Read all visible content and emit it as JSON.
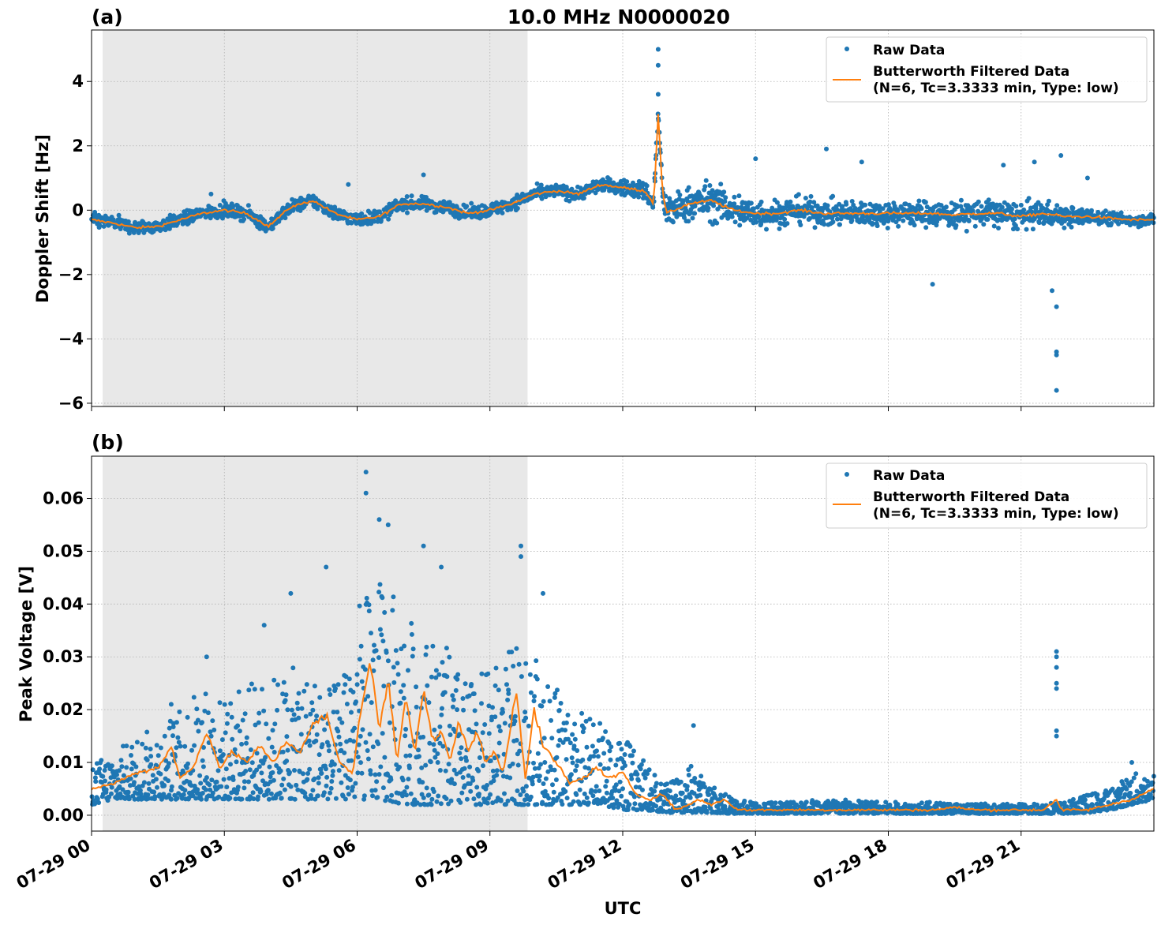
{
  "figure_title": "10.0 MHz N0000020",
  "x_axis": {
    "label": "UTC",
    "tick_labels": [
      "07-29 00",
      "07-29 03",
      "07-29 06",
      "07-29 09",
      "07-29 12",
      "07-29 15",
      "07-29 18",
      "07-29 21"
    ],
    "tick_hours": [
      0,
      3,
      6,
      9,
      12,
      15,
      18,
      21
    ],
    "range_hours": [
      0,
      24
    ]
  },
  "legend": {
    "raw_label": "Raw Data",
    "filtered_label_line1": "Butterworth Filtered Data",
    "filtered_label_line2": "(N=6, Tc=3.3333 min, Type: low)"
  },
  "colors": {
    "raw": "#1f77b4",
    "filtered": "#ff7f0e",
    "night_shade": "#e8e8e8"
  },
  "chart_data": [
    {
      "type": "scatter",
      "panel_label": "(a)",
      "ylabel": "Doppler Shift [Hz]",
      "ylim": [
        -6.1,
        5.6
      ],
      "yticks": [
        4,
        2,
        0,
        -2,
        -4,
        -6
      ],
      "ytick_labels": [
        "4",
        "2",
        "0",
        "−2",
        "−4",
        "−6"
      ],
      "shaded_region_hours": [
        0.25,
        9.85
      ],
      "grid": true,
      "legend_position": "top-right",
      "series": [
        {
          "name": "Raw Data",
          "kind": "scatter",
          "envelope_hours": [
            0,
            0.5,
            1,
            1.5,
            2,
            2.5,
            3,
            3.5,
            4,
            4.5,
            5,
            5.5,
            6,
            6.5,
            7,
            7.5,
            8,
            8.5,
            9,
            9.5,
            10,
            10.5,
            11,
            11.5,
            12,
            12.5,
            12.8,
            13,
            13.5,
            14,
            14.5,
            15,
            15.5,
            16,
            16.5,
            17,
            17.5,
            18,
            18.5,
            19,
            19.5,
            20,
            20.5,
            21,
            21.5,
            22,
            22.5,
            23,
            23.5,
            24
          ],
          "envelope_spread": [
            0.35,
            0.35,
            0.35,
            0.35,
            0.35,
            0.35,
            0.35,
            0.35,
            0.35,
            0.35,
            0.35,
            0.35,
            0.35,
            0.35,
            0.35,
            0.35,
            0.35,
            0.35,
            0.35,
            0.35,
            0.35,
            0.35,
            0.35,
            0.35,
            0.4,
            0.5,
            0.6,
            0.8,
            0.9,
            1.0,
            0.9,
            0.8,
            0.7,
            0.7,
            0.65,
            0.65,
            0.65,
            0.65,
            0.65,
            0.65,
            0.7,
            0.7,
            0.7,
            0.7,
            0.65,
            0.55,
            0.4,
            0.35,
            0.3,
            0.3
          ],
          "outliers": [
            [
              2.7,
              0.5
            ],
            [
              5.8,
              0.8
            ],
            [
              7.5,
              1.1
            ],
            [
              12.8,
              5.0
            ],
            [
              12.8,
              4.5
            ],
            [
              12.8,
              3.6
            ],
            [
              15.0,
              1.6
            ],
            [
              16.6,
              1.9
            ],
            [
              17.4,
              1.5
            ],
            [
              19.0,
              -2.3
            ],
            [
              20.6,
              1.4
            ],
            [
              21.3,
              1.5
            ],
            [
              21.7,
              -2.5
            ],
            [
              21.8,
              -3.0
            ],
            [
              21.8,
              -4.4
            ],
            [
              21.8,
              -4.5
            ],
            [
              21.8,
              -5.6
            ],
            [
              21.9,
              1.7
            ],
            [
              22.5,
              1.0
            ]
          ]
        },
        {
          "name": "Butterworth Filtered Data",
          "kind": "line",
          "x_hours": [
            0,
            0.5,
            1,
            1.5,
            2,
            2.5,
            3,
            3.5,
            4,
            4.5,
            5,
            5.5,
            6,
            6.5,
            7,
            7.5,
            8,
            8.5,
            9,
            9.5,
            10,
            10.5,
            11,
            11.5,
            12,
            12.5,
            12.7,
            12.8,
            12.9,
            13,
            13.5,
            14,
            14.5,
            15,
            15.5,
            16,
            16.5,
            17,
            17.5,
            18,
            18.5,
            19,
            19.5,
            20,
            20.5,
            21,
            21.5,
            22,
            22.5,
            23,
            23.5,
            24
          ],
          "y": [
            -0.3,
            -0.4,
            -0.55,
            -0.5,
            -0.3,
            -0.1,
            0.0,
            -0.1,
            -0.5,
            0.1,
            0.3,
            -0.1,
            -0.3,
            -0.2,
            0.2,
            0.2,
            0.1,
            -0.1,
            0.0,
            0.2,
            0.5,
            0.6,
            0.5,
            0.8,
            0.7,
            0.6,
            0.2,
            3.0,
            0.5,
            -0.1,
            0.2,
            0.3,
            0.0,
            -0.1,
            -0.1,
            0.0,
            -0.1,
            -0.1,
            -0.1,
            -0.1,
            -0.1,
            -0.1,
            -0.15,
            -0.1,
            -0.1,
            -0.2,
            -0.1,
            -0.2,
            -0.2,
            -0.25,
            -0.3,
            -0.3
          ]
        }
      ]
    },
    {
      "type": "scatter",
      "panel_label": "(b)",
      "ylabel": "Peak Voltage [V]",
      "ylim": [
        -0.003,
        0.068
      ],
      "yticks": [
        0.06,
        0.05,
        0.04,
        0.03,
        0.02,
        0.01,
        0.0
      ],
      "ytick_labels": [
        "0.06",
        "0.05",
        "0.04",
        "0.03",
        "0.02",
        "0.01",
        "0.00"
      ],
      "shaded_region_hours": [
        0.25,
        9.85
      ],
      "grid": true,
      "legend_position": "top-right",
      "series": [
        {
          "name": "Raw Data",
          "kind": "scatter",
          "envelope_hours": [
            0,
            0.5,
            1,
            1.5,
            2,
            2.5,
            3,
            3.5,
            4,
            4.5,
            5,
            5.5,
            6,
            6.5,
            7,
            7.5,
            8,
            8.5,
            9,
            9.5,
            10,
            10.5,
            11,
            11.5,
            12,
            12.5,
            13,
            13.5,
            14,
            14.5,
            15,
            16,
            17,
            18,
            19,
            20,
            21,
            21.5,
            22,
            22.5,
            23,
            23.5,
            24
          ],
          "envelope_low": [
            0.002,
            0.003,
            0.003,
            0.003,
            0.003,
            0.003,
            0.003,
            0.003,
            0.003,
            0.003,
            0.003,
            0.003,
            0.003,
            0.003,
            0.002,
            0.002,
            0.002,
            0.002,
            0.002,
            0.002,
            0.002,
            0.002,
            0.002,
            0.002,
            0.001,
            0.001,
            0.0005,
            0.0005,
            0.0005,
            0.0003,
            0.0003,
            0.0003,
            0.0003,
            0.0003,
            0.0003,
            0.0003,
            0.0003,
            0.0003,
            0.0003,
            0.0005,
            0.001,
            0.002,
            0.003
          ],
          "envelope_high": [
            0.01,
            0.012,
            0.015,
            0.017,
            0.02,
            0.025,
            0.022,
            0.025,
            0.026,
            0.028,
            0.027,
            0.025,
            0.04,
            0.045,
            0.04,
            0.035,
            0.032,
            0.025,
            0.028,
            0.032,
            0.03,
            0.025,
            0.02,
            0.018,
            0.015,
            0.01,
            0.006,
            0.01,
            0.006,
            0.003,
            0.0025,
            0.003,
            0.003,
            0.0025,
            0.0025,
            0.0022,
            0.0022,
            0.0025,
            0.0025,
            0.004,
            0.005,
            0.008,
            0.008
          ],
          "outliers": [
            [
              1.8,
              0.021
            ],
            [
              2.6,
              0.03
            ],
            [
              3.9,
              0.036
            ],
            [
              4.5,
              0.042
            ],
            [
              5.3,
              0.047
            ],
            [
              6.2,
              0.065
            ],
            [
              6.2,
              0.061
            ],
            [
              6.5,
              0.056
            ],
            [
              6.7,
              0.055
            ],
            [
              7.5,
              0.051
            ],
            [
              7.9,
              0.047
            ],
            [
              9.7,
              0.051
            ],
            [
              9.7,
              0.049
            ],
            [
              10.2,
              0.042
            ],
            [
              13.6,
              0.017
            ],
            [
              21.8,
              0.031
            ],
            [
              21.8,
              0.03
            ],
            [
              21.8,
              0.028
            ],
            [
              21.8,
              0.025
            ],
            [
              21.8,
              0.024
            ],
            [
              21.8,
              0.016
            ],
            [
              21.8,
              0.015
            ],
            [
              21.8,
              0.002
            ],
            [
              23.5,
              0.01
            ]
          ]
        },
        {
          "name": "Butterworth Filtered Data",
          "kind": "line",
          "x_hours": [
            0,
            0.5,
            1,
            1.5,
            1.8,
            2,
            2.3,
            2.6,
            2.9,
            3.2,
            3.5,
            3.8,
            4.1,
            4.4,
            4.7,
            5.0,
            5.3,
            5.6,
            5.9,
            6.1,
            6.3,
            6.5,
            6.7,
            6.9,
            7.1,
            7.3,
            7.5,
            7.7,
            7.9,
            8.1,
            8.3,
            8.5,
            8.7,
            8.9,
            9.1,
            9.3,
            9.6,
            9.8,
            10.0,
            10.2,
            10.5,
            10.8,
            11.1,
            11.4,
            11.7,
            12.0,
            12.3,
            12.6,
            12.9,
            13.2,
            13.5,
            13.7,
            14.0,
            14.3,
            14.6,
            15,
            16,
            17,
            18,
            19,
            19.5,
            20,
            21,
            21.5,
            21.8,
            21.9,
            22.5,
            23,
            23.5,
            24
          ],
          "y": [
            0.005,
            0.006,
            0.008,
            0.009,
            0.013,
            0.007,
            0.009,
            0.016,
            0.009,
            0.012,
            0.01,
            0.013,
            0.01,
            0.014,
            0.012,
            0.017,
            0.019,
            0.01,
            0.008,
            0.021,
            0.029,
            0.016,
            0.026,
            0.01,
            0.023,
            0.012,
            0.024,
            0.014,
            0.016,
            0.01,
            0.018,
            0.012,
            0.016,
            0.01,
            0.012,
            0.008,
            0.024,
            0.007,
            0.02,
            0.013,
            0.01,
            0.006,
            0.007,
            0.009,
            0.007,
            0.008,
            0.004,
            0.003,
            0.004,
            0.001,
            0.002,
            0.003,
            0.002,
            0.003,
            0.001,
            0.001,
            0.001,
            0.001,
            0.001,
            0.001,
            0.0015,
            0.001,
            0.001,
            0.001,
            0.003,
            0.001,
            0.001,
            0.002,
            0.003,
            0.005
          ]
        }
      ]
    }
  ]
}
